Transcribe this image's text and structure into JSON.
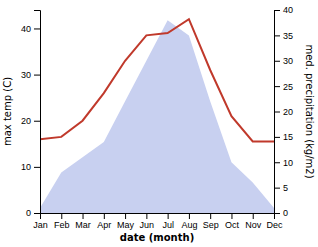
{
  "chart_data": {
    "type": "line",
    "xlabel": "date (month)",
    "ylabel": "max temp (C)",
    "y2label": "med. precipitation (kg/m2)",
    "categories": [
      "Jan",
      "Feb",
      "Mar",
      "Apr",
      "May",
      "Jun",
      "Jul",
      "Aug",
      "Sep",
      "Oct",
      "Nov",
      "Dec"
    ],
    "series": [
      {
        "type": "line",
        "color": "#c0392b",
        "values": [
          16,
          16.5,
          20,
          26,
          33,
          38.5,
          39,
          42,
          31,
          21,
          15.5,
          15.5
        ]
      },
      {
        "type": "area",
        "axis": "y2",
        "color": "#c8d0f0",
        "values": [
          1,
          8,
          11,
          14,
          22,
          30,
          38,
          35,
          22,
          10,
          6,
          1
        ]
      }
    ],
    "ylim": [
      0,
      44
    ],
    "yticks": [
      0,
      10,
      20,
      30,
      40
    ],
    "y2lim": [
      0,
      40
    ],
    "y2ticks": [
      0,
      5,
      10,
      15,
      20,
      25,
      30,
      35,
      40
    ],
    "grid": false
  }
}
